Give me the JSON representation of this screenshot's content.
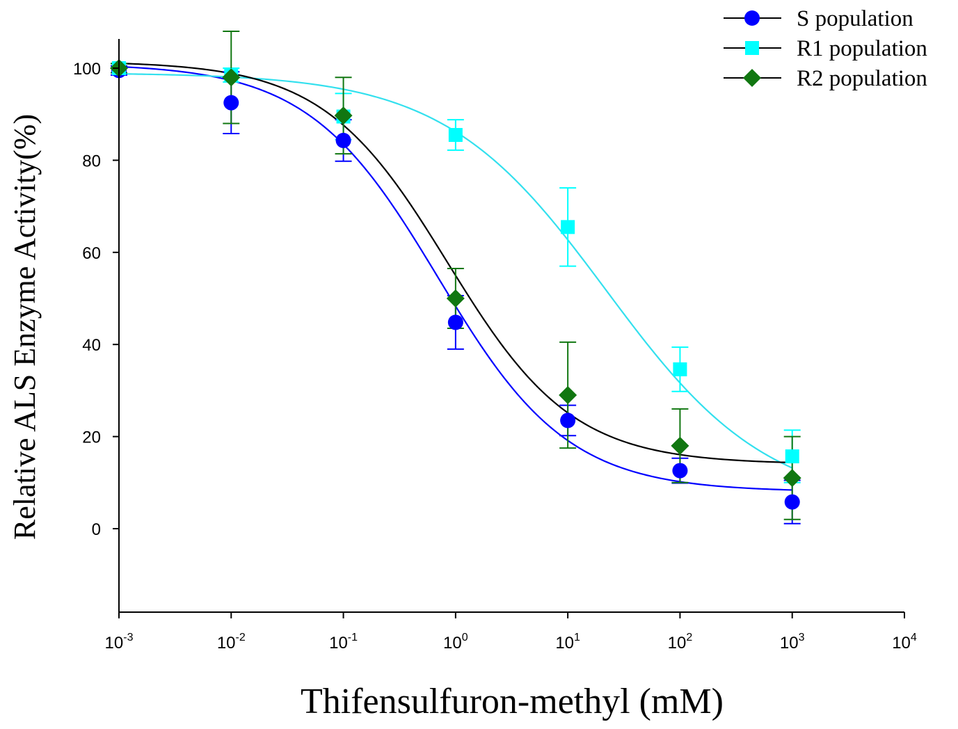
{
  "chart_data": {
    "type": "scatter",
    "title": "",
    "xlabel": "Thifensulfuron-methyl (mM)",
    "ylabel": "Relative ALS Enzyme Activity(%)",
    "xscale": "log",
    "xlim": [
      0.001,
      10000
    ],
    "ylim": [
      -18,
      107
    ],
    "x_ticks": [
      {
        "base": "10",
        "exp": "-3",
        "value": 0.001
      },
      {
        "base": "10",
        "exp": "-2",
        "value": 0.01
      },
      {
        "base": "10",
        "exp": "-1",
        "value": 0.1
      },
      {
        "base": "10",
        "exp": "0",
        "value": 1
      },
      {
        "base": "10",
        "exp": "1",
        "value": 10
      },
      {
        "base": "10",
        "exp": "2",
        "value": 100
      },
      {
        "base": "10",
        "exp": "3",
        "value": 1000
      },
      {
        "base": "10",
        "exp": "4",
        "value": 10000
      }
    ],
    "y_ticks": [
      {
        "label": "0",
        "value": 0
      },
      {
        "label": "20",
        "value": 20
      },
      {
        "label": "40",
        "value": 40
      },
      {
        "label": "60",
        "value": 60
      },
      {
        "label": "80",
        "value": 80
      },
      {
        "label": "100",
        "value": 100
      }
    ],
    "legend_position": "top-right",
    "series": [
      {
        "name": "S population",
        "marker": "circle",
        "marker_color": "#0000ff",
        "curve_color": "#0000ff",
        "x": [
          0.001,
          0.01,
          0.1,
          1,
          10,
          100,
          1000
        ],
        "y": [
          99.5,
          92.5,
          84.3,
          44.8,
          23.5,
          12.6,
          5.8
        ],
        "err": [
          1,
          6.7,
          4.5,
          5.8,
          3.3,
          2.7,
          4.7
        ],
        "fit": {
          "top": 101.0,
          "bottom": 8.0,
          "ic50": 0.7,
          "hill": 0.75
        }
      },
      {
        "name": "R1 population",
        "marker": "square",
        "marker_color": "#00ffff",
        "curve_color": "#33e0ee",
        "x": [
          0.001,
          0.01,
          0.1,
          1,
          10,
          100,
          1000
        ],
        "y": [
          100,
          98.5,
          89.5,
          85.5,
          65.5,
          34.6,
          15.7
        ],
        "err": [
          1,
          1.5,
          5,
          3.3,
          8.5,
          4.8,
          5.7
        ],
        "fit": {
          "top": 99.0,
          "bottom": 4.5,
          "ic50": 22.0,
          "hill": 0.6
        }
      },
      {
        "name": "R2 population",
        "marker": "diamond",
        "marker_color": "#117711",
        "curve_color": "#000000",
        "x": [
          0.001,
          0.01,
          0.1,
          1,
          10,
          100,
          1000
        ],
        "y": [
          100,
          98,
          89.7,
          50,
          29,
          18,
          11
        ],
        "err": [
          1,
          10,
          8.3,
          6.5,
          11.5,
          8,
          9
        ],
        "fit": {
          "top": 101.5,
          "bottom": 14.0,
          "ic50": 0.85,
          "hill": 0.78
        }
      }
    ]
  }
}
